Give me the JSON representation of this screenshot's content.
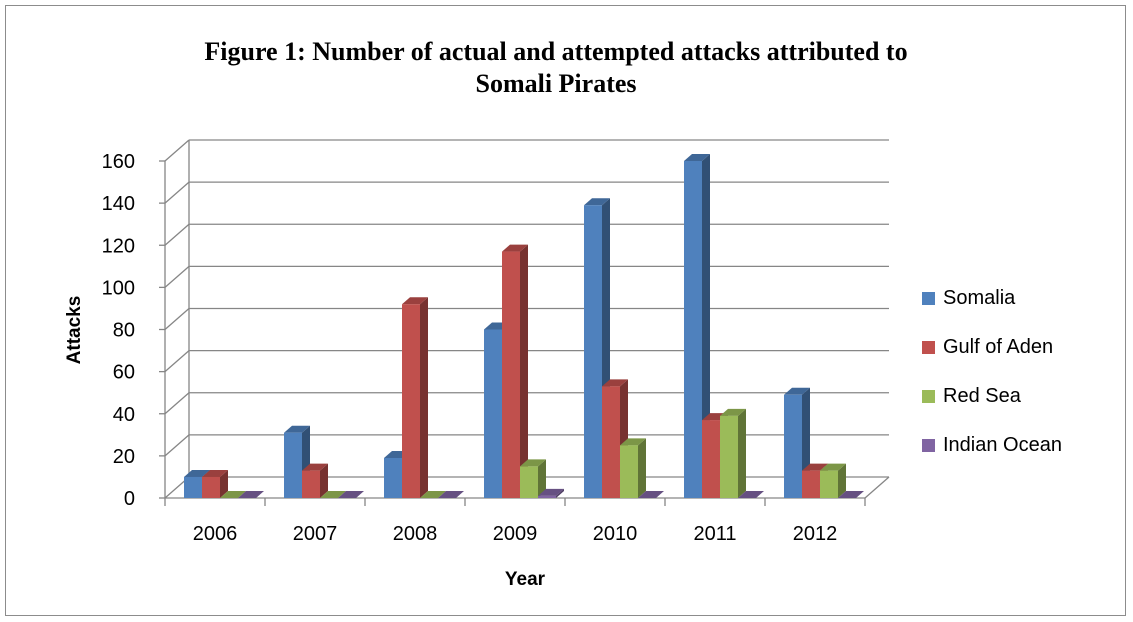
{
  "chart_data": {
    "type": "bar",
    "title": "Figure 1: Number of actual and attempted attacks attributed to Somali Pirates",
    "title_lines": [
      "Figure 1: Number of actual and attempted attacks attributed to",
      "Somali Pirates"
    ],
    "xlabel": "Year",
    "ylabel": "Attacks",
    "categories": [
      "2006",
      "2007",
      "2008",
      "2009",
      "2010",
      "2011",
      "2012"
    ],
    "ylim": [
      0,
      160
    ],
    "yticks": [
      "0",
      "20",
      "40",
      "60",
      "80",
      "100",
      "120",
      "140",
      "160"
    ],
    "grid": true,
    "legend_position": "right",
    "series": [
      {
        "name": "Somalia",
        "color": "#4f81bd",
        "values": [
          10,
          31,
          19,
          80,
          139,
          160,
          49
        ]
      },
      {
        "name": "Gulf of Aden",
        "color": "#c0504d",
        "values": [
          10,
          13,
          92,
          117,
          53,
          37,
          13
        ]
      },
      {
        "name": "Red Sea",
        "color": "#9bbb59",
        "values": [
          0,
          0,
          0,
          15,
          25,
          39,
          13
        ]
      },
      {
        "name": "Indian Ocean",
        "color": "#8064a2",
        "values": [
          0,
          0,
          0,
          1,
          0,
          0,
          0
        ]
      }
    ]
  }
}
